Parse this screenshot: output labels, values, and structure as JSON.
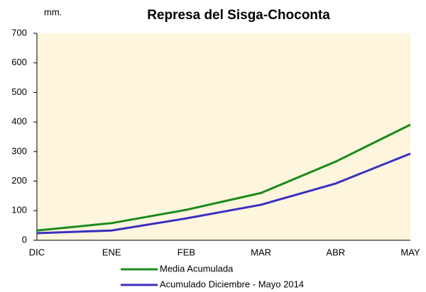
{
  "chart_data": {
    "type": "line",
    "title": "Represa del Sisga-Choconta",
    "y_label": "mm.",
    "categories": [
      "DIC",
      "ENE",
      "FEB",
      "MAR",
      "ABR",
      "MAY"
    ],
    "series": [
      {
        "name": "Media Acumulada",
        "color": "#1a8a1a",
        "values": [
          33,
          58,
          103,
          160,
          266,
          391
        ]
      },
      {
        "name": "Acumulado  Diciembre - Mayo 2014",
        "color": "#3a2fc0",
        "values": [
          24,
          33,
          74,
          120,
          192,
          293
        ]
      }
    ],
    "ylim": [
      0,
      700
    ],
    "yticks": [
      0,
      100,
      200,
      300,
      400,
      500,
      600,
      700
    ],
    "background": "#fdf5dc",
    "grid": false,
    "legend": "bottom"
  }
}
